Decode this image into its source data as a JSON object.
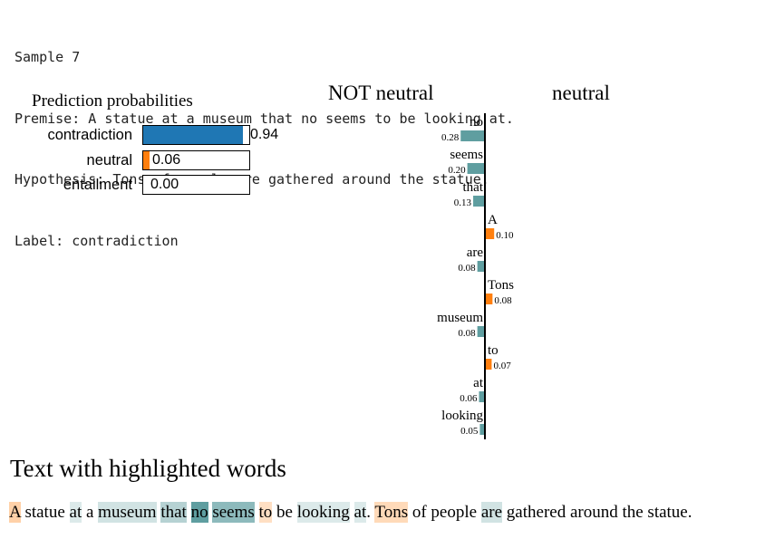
{
  "header": {
    "sample": "Sample 7",
    "premise": "Premise: A statue at a museum that no seems to be looking at.",
    "hypothesis": "Hypothesis: Tons of people are gathered around the statue.",
    "label": "Label: contradiction"
  },
  "prediction": {
    "title": "Prediction probabilities",
    "rows": [
      {
        "label": "contradiction",
        "value": 0.94,
        "text": "0.94",
        "color": "#1f77b4"
      },
      {
        "label": "neutral",
        "value": 0.06,
        "text": "0.06",
        "color": "#ff7f0e"
      },
      {
        "label": "entailment",
        "value": 0.0,
        "text": "0.00",
        "color": "#2ca02c"
      }
    ]
  },
  "explanation": {
    "not_label": "NOT neutral",
    "label": "neutral",
    "not_color": "#5f9ea0",
    "pos_color": "#ff7f0e",
    "features": [
      {
        "word": "no",
        "weight": -0.28,
        "text": "0.28"
      },
      {
        "word": "seems",
        "weight": -0.2,
        "text": "0.20"
      },
      {
        "word": "that",
        "weight": -0.13,
        "text": "0.13"
      },
      {
        "word": "A",
        "weight": 0.1,
        "text": "0.10"
      },
      {
        "word": "are",
        "weight": -0.08,
        "text": "0.08"
      },
      {
        "word": "Tons",
        "weight": 0.08,
        "text": "0.08"
      },
      {
        "word": "museum",
        "weight": -0.08,
        "text": "0.08"
      },
      {
        "word": "to",
        "weight": 0.07,
        "text": "0.07"
      },
      {
        "word": "at",
        "weight": -0.06,
        "text": "0.06"
      },
      {
        "word": "looking",
        "weight": -0.05,
        "text": "0.05"
      }
    ]
  },
  "highlight": {
    "title": "Text with highlighted words",
    "tokens": [
      {
        "text": "A",
        "weight": 0.1
      },
      {
        "text": " statue ",
        "weight": 0
      },
      {
        "text": "at",
        "weight": -0.06
      },
      {
        "text": " a ",
        "weight": 0
      },
      {
        "text": "museum",
        "weight": -0.08
      },
      {
        "text": " ",
        "weight": 0
      },
      {
        "text": "that",
        "weight": -0.13
      },
      {
        "text": " ",
        "weight": 0
      },
      {
        "text": "no",
        "weight": -0.28
      },
      {
        "text": " ",
        "weight": 0
      },
      {
        "text": "seems",
        "weight": -0.2
      },
      {
        "text": " ",
        "weight": 0
      },
      {
        "text": "to",
        "weight": 0.07
      },
      {
        "text": " be ",
        "weight": 0
      },
      {
        "text": "looking",
        "weight": -0.05
      },
      {
        "text": " ",
        "weight": 0
      },
      {
        "text": "at",
        "weight": -0.06
      },
      {
        "text": ". ",
        "weight": 0
      },
      {
        "text": "Tons",
        "weight": 0.08
      },
      {
        "text": " of people ",
        "weight": 0
      },
      {
        "text": "are",
        "weight": -0.08
      },
      {
        "text": " gathered around the statue.",
        "weight": 0
      }
    ]
  }
}
